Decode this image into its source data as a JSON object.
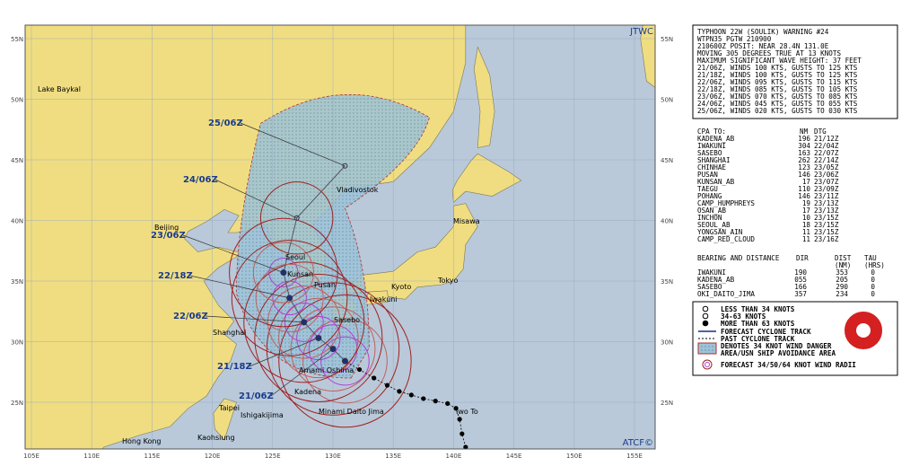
{
  "map": {
    "source": "JTWC",
    "credit": "ATCF©",
    "lat_labels": [
      "55N",
      "50N",
      "45N",
      "40N",
      "35N",
      "30N",
      "25N"
    ],
    "lon_labels": [
      "105E",
      "110E",
      "115E",
      "120E",
      "125E",
      "130E",
      "135E",
      "140E",
      "145E",
      "150E",
      "155E"
    ],
    "places": [
      "Lake Baykal",
      "Beijing",
      "Vladivostok",
      "Misawa",
      "Tokyo",
      "Kyoto",
      "Seoul",
      "Kunsan",
      "Pusan",
      "Iwakuni",
      "Sasebo",
      "Shanghai",
      "Amami Oshima",
      "Kadena",
      "Minami Daito Jima",
      "Iwo To",
      "Taipei",
      "Ishigakijima",
      "Kaohsiung",
      "Hong Kong"
    ],
    "forecast_times": [
      "25/06Z",
      "24/06Z",
      "23/06Z",
      "22/18Z",
      "22/06Z",
      "21/18Z",
      "21/06Z"
    ]
  },
  "warning": {
    "lines": [
      "TYPHOON 22W (SOULIK) WARNING #24",
      "WTPN35 PGTW 210900",
      "210600Z POSIT: NEAR 28.4N 131.0E",
      "MOVING 305 DEGREES TRUE AT 13 KNOTS",
      "MAXIMUM SIGNIFICANT WAVE HEIGHT: 37 FEET",
      "21/06Z, WINDS 100 KTS, GUSTS TO 125 KTS",
      "21/18Z, WINDS 100 KTS, GUSTS TO 125 KTS",
      "22/06Z, WINDS 095 KTS, GUSTS TO 115 KTS",
      "22/18Z, WINDS 085 KTS, GUSTS TO 105 KTS",
      "23/06Z, WINDS 070 KTS, GUSTS TO 085 KTS",
      "24/06Z, WINDS 045 KTS, GUSTS TO 055 KTS",
      "25/06Z, WINDS 020 KTS, GUSTS TO 030 KTS"
    ]
  },
  "cpa": {
    "header": [
      "CPA TO:",
      "NM",
      "DTG"
    ],
    "rows": [
      [
        "KADENA_AB",
        "196",
        "21/12Z"
      ],
      [
        "IWAKUNI",
        "304",
        "22/04Z"
      ],
      [
        "SASEBO",
        "163",
        "22/07Z"
      ],
      [
        "SHANGHAI",
        "262",
        "22/14Z"
      ],
      [
        "CHINHAE",
        "123",
        "23/05Z"
      ],
      [
        "PUSAN",
        "146",
        "23/06Z"
      ],
      [
        "KUNSAN_AB",
        "17",
        "23/07Z"
      ],
      [
        "TAEGU",
        "110",
        "23/09Z"
      ],
      [
        "POHANG",
        "146",
        "23/11Z"
      ],
      [
        "CAMP_HUMPHREYS",
        "19",
        "23/13Z"
      ],
      [
        "OSAN_AB",
        "17",
        "23/13Z"
      ],
      [
        "INCHON",
        "10",
        "23/15Z"
      ],
      [
        "SEOUL_AB",
        "18",
        "23/15Z"
      ],
      [
        "YONGSAN_AIN",
        "11",
        "23/15Z"
      ],
      [
        "CAMP_RED_CLOUD",
        "11",
        "23/16Z"
      ]
    ]
  },
  "bearing": {
    "header": [
      "BEARING AND DISTANCE",
      "DIR",
      "DIST",
      "TAU",
      "(NM)",
      "(HRS)"
    ],
    "rows": [
      [
        "IWAKUNI",
        "190",
        "353",
        "0"
      ],
      [
        "KADENA_AB",
        "055",
        "205",
        "0"
      ],
      [
        "SASEBO",
        "166",
        "290",
        "0"
      ],
      [
        "OKI_DAITO_JIMA",
        "357",
        "234",
        "0"
      ]
    ]
  },
  "legend": [
    "LESS THAN 34 KNOTS",
    "34-63 KNOTS",
    "MORE THAN 63 KNOTS",
    "FORECAST CYCLONE TRACK",
    "PAST CYCLONE TRACK",
    "DENOTES 34 KNOT WIND DANGER",
    "AREA/USN SHIP AVOIDANCE AREA",
    "FORECAST 34/50/64 KNOT WIND RADII"
  ]
}
